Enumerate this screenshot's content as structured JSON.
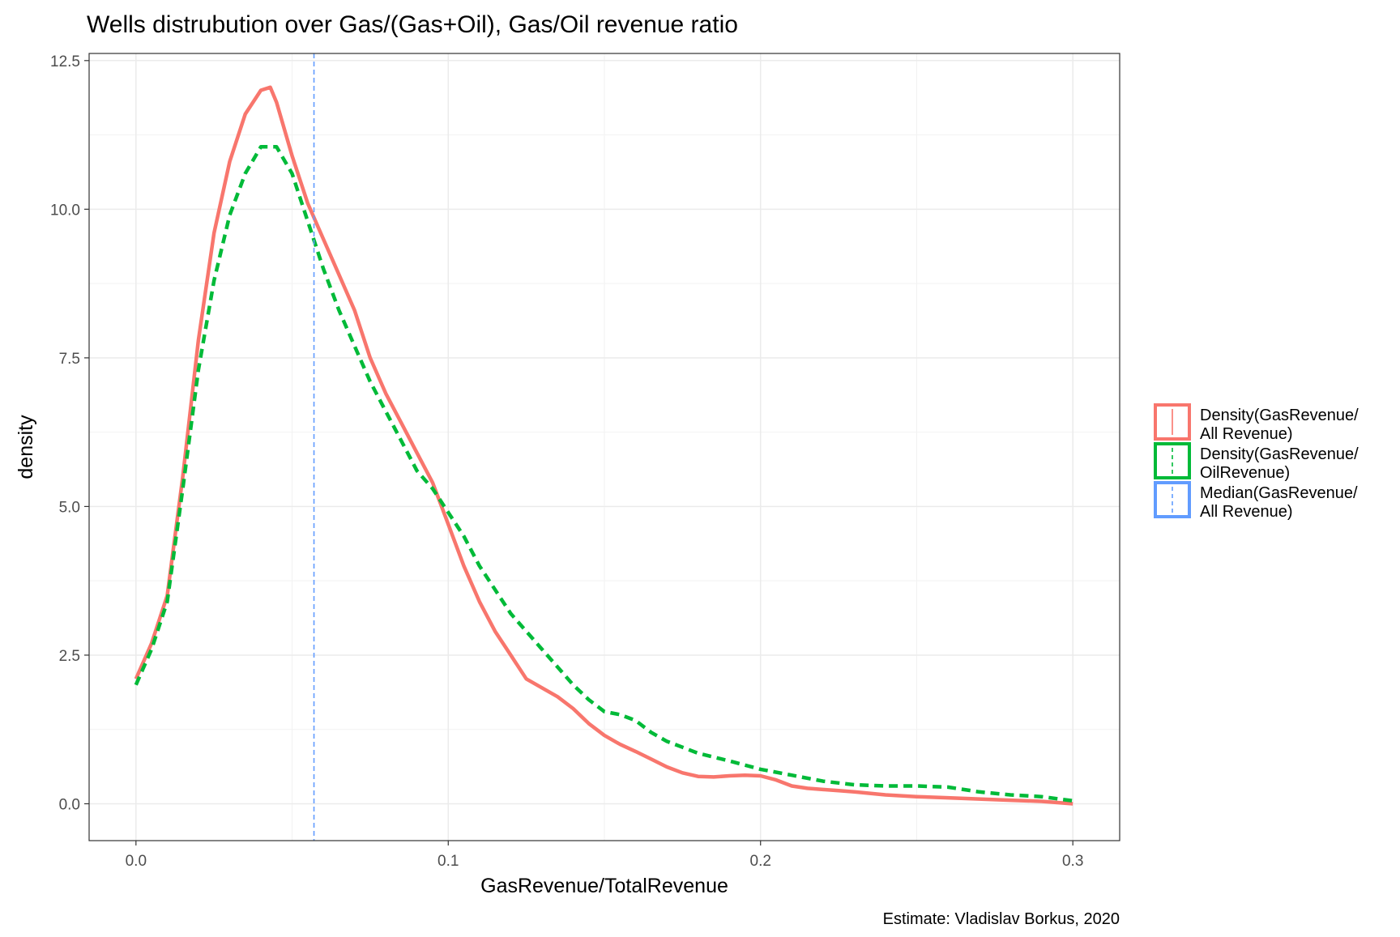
{
  "chart_data": {
    "type": "line",
    "title": "Wells distrubution over Gas/(Gas+Oil), Gas/Oil revenue ratio",
    "xlabel": "GasRevenue/TotalRevenue",
    "ylabel": "density",
    "caption": "Estimate: Vladislav Borkus, 2020",
    "xlim": [
      -0.015,
      0.315
    ],
    "ylim": [
      -0.62,
      12.62
    ],
    "x_ticks": [
      0.0,
      0.1,
      0.2,
      0.3
    ],
    "x_tick_labels": [
      "0.0",
      "0.1",
      "0.2",
      "0.3"
    ],
    "y_ticks": [
      0.0,
      2.5,
      5.0,
      7.5,
      10.0,
      12.5
    ],
    "y_tick_labels": [
      "0.0",
      "2.5",
      "5.0",
      "7.5",
      "10.0",
      "12.5"
    ],
    "grid": true,
    "legend_position": "right",
    "legend": [
      {
        "label_lines": [
          "Density(GasRevenue/",
          "All Revenue)"
        ],
        "color": "#F8766D",
        "linetype": "solid"
      },
      {
        "label_lines": [
          "Density(GasRevenue/",
          "OilRevenue)"
        ],
        "color": "#00BA38",
        "linetype": "dashed"
      },
      {
        "label_lines": [
          "Median(GasRevenue/",
          "All Revenue)"
        ],
        "color": "#619CFF",
        "linetype": "dashed"
      }
    ],
    "series": [
      {
        "color": "#F8766D",
        "linetype": "solid",
        "x": [
          0.0,
          0.005,
          0.01,
          0.015,
          0.02,
          0.025,
          0.03,
          0.035,
          0.04,
          0.043,
          0.045,
          0.05,
          0.055,
          0.06,
          0.065,
          0.07,
          0.075,
          0.08,
          0.085,
          0.09,
          0.095,
          0.1,
          0.105,
          0.11,
          0.115,
          0.12,
          0.125,
          0.13,
          0.135,
          0.14,
          0.145,
          0.15,
          0.155,
          0.16,
          0.165,
          0.17,
          0.175,
          0.18,
          0.185,
          0.19,
          0.195,
          0.2,
          0.205,
          0.21,
          0.215,
          0.22,
          0.225,
          0.23,
          0.24,
          0.25,
          0.26,
          0.27,
          0.28,
          0.29,
          0.3
        ],
        "y": [
          2.1,
          2.7,
          3.5,
          5.5,
          7.8,
          9.6,
          10.8,
          11.6,
          12.0,
          12.05,
          11.8,
          10.9,
          10.1,
          9.5,
          8.9,
          8.3,
          7.5,
          6.9,
          6.4,
          5.9,
          5.4,
          4.7,
          4.0,
          3.4,
          2.9,
          2.5,
          2.1,
          1.95,
          1.8,
          1.6,
          1.35,
          1.15,
          1.0,
          0.88,
          0.75,
          0.62,
          0.52,
          0.46,
          0.45,
          0.47,
          0.48,
          0.47,
          0.4,
          0.3,
          0.26,
          0.24,
          0.22,
          0.2,
          0.15,
          0.12,
          0.1,
          0.08,
          0.06,
          0.04,
          0.0
        ]
      },
      {
        "color": "#00BA38",
        "linetype": "dashed",
        "x": [
          0.0,
          0.005,
          0.01,
          0.015,
          0.02,
          0.025,
          0.03,
          0.035,
          0.04,
          0.045,
          0.05,
          0.055,
          0.06,
          0.065,
          0.07,
          0.075,
          0.08,
          0.085,
          0.09,
          0.095,
          0.1,
          0.105,
          0.11,
          0.115,
          0.12,
          0.125,
          0.13,
          0.135,
          0.14,
          0.145,
          0.15,
          0.155,
          0.16,
          0.165,
          0.17,
          0.175,
          0.18,
          0.19,
          0.2,
          0.21,
          0.22,
          0.23,
          0.24,
          0.25,
          0.26,
          0.27,
          0.28,
          0.29,
          0.3
        ],
        "y": [
          2.0,
          2.6,
          3.4,
          5.3,
          7.3,
          8.8,
          9.9,
          10.6,
          11.05,
          11.05,
          10.6,
          9.8,
          9.0,
          8.3,
          7.7,
          7.1,
          6.6,
          6.1,
          5.6,
          5.3,
          4.9,
          4.5,
          4.0,
          3.6,
          3.2,
          2.9,
          2.6,
          2.3,
          2.0,
          1.75,
          1.55,
          1.5,
          1.4,
          1.2,
          1.05,
          0.95,
          0.85,
          0.72,
          0.58,
          0.48,
          0.38,
          0.32,
          0.3,
          0.3,
          0.28,
          0.2,
          0.15,
          0.12,
          0.05
        ]
      },
      {
        "color": "#619CFF",
        "linetype": "dashed",
        "vline_x": 0.057
      }
    ]
  }
}
